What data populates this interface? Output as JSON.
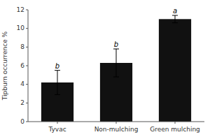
{
  "chart_data": {
    "type": "bar",
    "categories": [
      "Tyvac",
      "Non-mulching",
      "Green mulching"
    ],
    "values": [
      4.2,
      6.3,
      11.0
    ],
    "errors": [
      1.3,
      1.5,
      0.4
    ],
    "annotations": [
      "b",
      "b",
      "a"
    ],
    "color": "#111111",
    "ylabel": "Tipburn occurrence %",
    "ylim": [
      0,
      12
    ],
    "yticks": [
      0,
      2,
      4,
      6,
      8,
      10,
      12
    ]
  }
}
